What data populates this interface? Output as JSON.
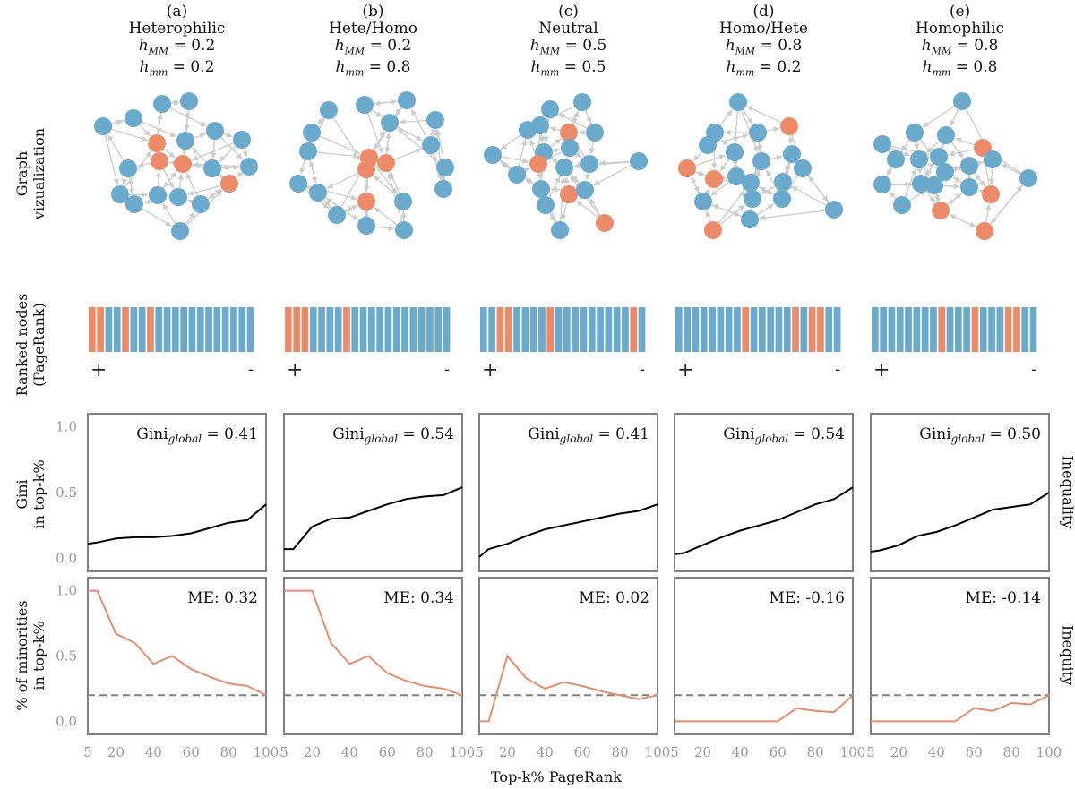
{
  "columns": [
    {
      "letter": "(a)",
      "name": "Heterophilic",
      "hMM_label": "h",
      "hMM_sub": "MM",
      "hMM": "= 0.2",
      "hmm_sub": "mm",
      "hmm": "= 0.2"
    },
    {
      "letter": "(b)",
      "name": "Hete/Homo",
      "hMM_label": "h",
      "hMM_sub": "MM",
      "hMM": "= 0.2",
      "hmm_sub": "mm",
      "hmm": "= 0.8"
    },
    {
      "letter": "(c)",
      "name": "Neutral",
      "hMM_label": "h",
      "hMM_sub": "MM",
      "hMM": "= 0.5",
      "hmm_sub": "mm",
      "hmm": "= 0.5"
    },
    {
      "letter": "(d)",
      "name": "Homo/Hete",
      "hMM_label": "h",
      "hMM_sub": "MM",
      "hMM": "= 0.8",
      "hmm_sub": "mm",
      "hmm": "= 0.2"
    },
    {
      "letter": "(e)",
      "name": "Homophilic",
      "hMM_label": "h",
      "hMM_sub": "MM",
      "hMM": "= 0.8",
      "hmm_sub": "mm",
      "hmm": "= 0.8"
    }
  ],
  "row_labels": {
    "graph": [
      "Graph",
      "vizualization"
    ],
    "ranked": [
      "Ranked nodes",
      "(PageRank)"
    ],
    "gini": [
      "Gini",
      "in top-k%"
    ],
    "minorities": [
      "% of minorities",
      "in top-k%"
    ]
  },
  "right_labels": {
    "gini": "Inequality",
    "minorities": "Inequity"
  },
  "rank_markers": {
    "plus": "+",
    "minus": "-"
  },
  "colors": {
    "majority": "#6aaacd",
    "minority": "#ed8b69",
    "edge": "#cccccc",
    "gini_line": "#000000",
    "baseline": "#808080",
    "frame": "#808080",
    "tick": "#999999"
  },
  "ranked_nodes": [
    "mmMMmMMmMMMMMMMMMMMM",
    "mmmMMMMmMMMMMMMMMMMM",
    "MMmmMMMMmMMMMMMMMMmM",
    "MMMMMMMMmMMMMMmMmmMM",
    "MMMMMMMMmMMMmMMMmmMM"
  ],
  "graph_note": "Directed network visualizations, 20 nodes each (majority=blue, minority=orange)",
  "graphs": [
    {
      "nodes": [
        [
          115,
          141,
          "M"
        ],
        [
          149,
          132,
          "M"
        ],
        [
          181,
          116,
          "M"
        ],
        [
          211,
          113,
          "M"
        ],
        [
          175,
          160,
          "m"
        ],
        [
          178,
          180,
          "m"
        ],
        [
          204,
          183,
          "m"
        ],
        [
          207,
          157,
          "M"
        ],
        [
          240,
          146,
          "M"
        ],
        [
          270,
          156,
          "M"
        ],
        [
          278,
          186,
          "M"
        ],
        [
          237,
          188,
          "M"
        ],
        [
          256,
          205,
          "m"
        ],
        [
          143,
          188,
          "M"
        ],
        [
          134,
          217,
          "M"
        ],
        [
          150,
          228,
          "M"
        ],
        [
          176,
          218,
          "M"
        ],
        [
          199,
          220,
          "M"
        ],
        [
          224,
          228,
          "M"
        ],
        [
          201,
          258,
          "M"
        ]
      ]
    },
    {
      "nodes": [
        [
          367,
          123,
          "M"
        ],
        [
          407,
          117,
          "M"
        ],
        [
          454,
          112,
          "M"
        ],
        [
          348,
          148,
          "M"
        ],
        [
          435,
          137,
          "M"
        ],
        [
          486,
          134,
          "M"
        ],
        [
          344,
          169,
          "M"
        ],
        [
          481,
          162,
          "M"
        ],
        [
          412,
          176,
          "m"
        ],
        [
          409,
          189,
          "m"
        ],
        [
          431,
          182,
          "m"
        ],
        [
          333,
          205,
          "M"
        ],
        [
          355,
          215,
          "M"
        ],
        [
          497,
          187,
          "M"
        ],
        [
          495,
          211,
          "M"
        ],
        [
          409,
          225,
          "m"
        ],
        [
          376,
          240,
          "M"
        ],
        [
          409,
          252,
          "M"
        ],
        [
          450,
          225,
          "M"
        ],
        [
          451,
          257,
          "M"
        ]
      ]
    },
    {
      "nodes": [
        [
          614,
          122,
          "M"
        ],
        [
          650,
          114,
          "M"
        ],
        [
          603,
          140,
          "M"
        ],
        [
          589,
          145,
          "M"
        ],
        [
          635,
          148,
          "m"
        ],
        [
          664,
          148,
          "M"
        ],
        [
          550,
          173,
          "M"
        ],
        [
          607,
          170,
          "M"
        ],
        [
          636,
          165,
          "M"
        ],
        [
          601,
          183,
          "m"
        ],
        [
          630,
          187,
          "M"
        ],
        [
          658,
          183,
          "M"
        ],
        [
          713,
          180,
          "M"
        ],
        [
          577,
          195,
          "M"
        ],
        [
          604,
          211,
          "M"
        ],
        [
          635,
          217,
          "m"
        ],
        [
          653,
          212,
          "M"
        ],
        [
          609,
          229,
          "M"
        ],
        [
          625,
          257,
          "M"
        ],
        [
          675,
          249,
          "m"
        ]
      ]
    },
    {
      "nodes": [
        [
          824,
          114,
          "M"
        ],
        [
          798,
          148,
          "M"
        ],
        [
          846,
          148,
          "M"
        ],
        [
          881,
          141,
          "m"
        ],
        [
          790,
          162,
          "M"
        ],
        [
          820,
          170,
          "M"
        ],
        [
          850,
          180,
          "M"
        ],
        [
          884,
          172,
          "M"
        ],
        [
          767,
          188,
          "m"
        ],
        [
          797,
          200,
          "m"
        ],
        [
          822,
          197,
          "M"
        ],
        [
          838,
          204,
          "M"
        ],
        [
          896,
          188,
          "M"
        ],
        [
          874,
          203,
          "M"
        ],
        [
          785,
          225,
          "M"
        ],
        [
          840,
          222,
          "M"
        ],
        [
          873,
          222,
          "M"
        ],
        [
          931,
          234,
          "M"
        ],
        [
          837,
          245,
          "M"
        ],
        [
          796,
          257,
          "m"
        ]
      ]
    },
    {
      "nodes": [
        [
          1074,
          113,
          "M"
        ],
        [
          985,
          161,
          "M"
        ],
        [
          1021,
          148,
          "M"
        ],
        [
          1056,
          151,
          "M"
        ],
        [
          1097,
          165,
          "m"
        ],
        [
          1000,
          178,
          "M"
        ],
        [
          1026,
          178,
          "M"
        ],
        [
          1048,
          175,
          "M"
        ],
        [
          1055,
          192,
          "M"
        ],
        [
          1082,
          185,
          "M"
        ],
        [
          1108,
          178,
          "M"
        ],
        [
          985,
          206,
          "M"
        ],
        [
          1028,
          205,
          "M"
        ],
        [
          1043,
          207,
          "M"
        ],
        [
          1082,
          209,
          "M"
        ],
        [
          1106,
          217,
          "m"
        ],
        [
          1148,
          199,
          "M"
        ],
        [
          1007,
          229,
          "M"
        ],
        [
          1050,
          235,
          "m"
        ],
        [
          1099,
          258,
          "m"
        ]
      ]
    }
  ],
  "xlabel": "Top-k% PageRank",
  "chart_data": [
    {
      "type": "line",
      "row": "Gini in top-k%",
      "x": [
        5,
        10,
        20,
        30,
        40,
        50,
        60,
        70,
        80,
        90,
        100
      ],
      "xticks": [
        "5",
        "20",
        "40",
        "60",
        "80",
        "100"
      ],
      "yticks": [
        "0.0",
        "0.5",
        "1.0"
      ],
      "ylim": [
        -0.1,
        1.1
      ],
      "xlim": [
        5,
        100
      ],
      "series": [
        {
          "panel": "(a)",
          "annotation": "Gini",
          "annotation_sub": "global",
          "annotation_val": "= 0.41",
          "values": [
            0.11,
            0.12,
            0.15,
            0.16,
            0.16,
            0.17,
            0.19,
            0.23,
            0.27,
            0.29,
            0.41
          ]
        },
        {
          "panel": "(b)",
          "annotation": "Gini",
          "annotation_sub": "global",
          "annotation_val": "= 0.54",
          "values": [
            0.07,
            0.07,
            0.24,
            0.3,
            0.31,
            0.36,
            0.41,
            0.45,
            0.47,
            0.48,
            0.54
          ]
        },
        {
          "panel": "(c)",
          "annotation": "Gini",
          "annotation_sub": "global",
          "annotation_val": "= 0.41",
          "values": [
            0.01,
            0.07,
            0.11,
            0.17,
            0.22,
            0.25,
            0.28,
            0.31,
            0.34,
            0.36,
            0.41
          ]
        },
        {
          "panel": "(d)",
          "annotation": "Gini",
          "annotation_sub": "global",
          "annotation_val": "= 0.54",
          "values": [
            0.03,
            0.04,
            0.1,
            0.16,
            0.21,
            0.25,
            0.29,
            0.35,
            0.41,
            0.45,
            0.54
          ]
        },
        {
          "panel": "(e)",
          "annotation": "Gini",
          "annotation_sub": "global",
          "annotation_val": "= 0.50",
          "values": [
            0.05,
            0.06,
            0.1,
            0.17,
            0.2,
            0.25,
            0.31,
            0.37,
            0.39,
            0.41,
            0.5
          ]
        }
      ]
    },
    {
      "type": "line",
      "row": "% of minorities in top-k%",
      "x": [
        5,
        10,
        20,
        30,
        40,
        50,
        60,
        70,
        80,
        90,
        100
      ],
      "xticks": [
        "5",
        "20",
        "40",
        "60",
        "80",
        "100"
      ],
      "yticks": [
        "0.0",
        "0.5",
        "1.0"
      ],
      "ylim": [
        -0.1,
        1.1
      ],
      "xlim": [
        5,
        100
      ],
      "baseline": 0.2,
      "series": [
        {
          "panel": "(a)",
          "annotation": "ME: 0.32",
          "values": [
            1.0,
            1.0,
            0.67,
            0.6,
            0.44,
            0.5,
            0.4,
            0.34,
            0.29,
            0.27,
            0.2
          ]
        },
        {
          "panel": "(b)",
          "annotation": "ME: 0.34",
          "values": [
            1.0,
            1.0,
            1.0,
            0.6,
            0.44,
            0.5,
            0.37,
            0.31,
            0.27,
            0.25,
            0.2
          ]
        },
        {
          "panel": "(c)",
          "annotation": "ME: 0.02",
          "values": [
            0.0,
            0.0,
            0.5,
            0.33,
            0.25,
            0.3,
            0.27,
            0.23,
            0.2,
            0.17,
            0.2
          ]
        },
        {
          "panel": "(d)",
          "annotation": "ME: -0.16",
          "values": [
            0.0,
            0.0,
            0.0,
            0.0,
            0.0,
            0.0,
            0.0,
            0.1,
            0.08,
            0.07,
            0.2
          ]
        },
        {
          "panel": "(e)",
          "annotation": "ME: -0.14",
          "values": [
            0.0,
            0.0,
            0.0,
            0.0,
            0.0,
            0.0,
            0.1,
            0.08,
            0.14,
            0.13,
            0.2
          ]
        }
      ]
    }
  ]
}
